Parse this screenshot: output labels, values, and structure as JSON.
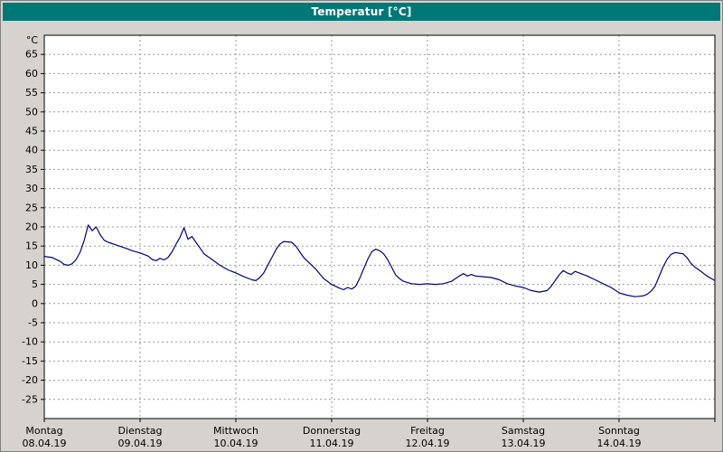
{
  "window": {
    "title": "Temperatur [°C]"
  },
  "colors": {
    "title_bar": "#007878",
    "title_text": "#ffffff",
    "panel_bg": "#d6d3ce",
    "plot_bg": "#ffffff",
    "grid": "#999999",
    "axis": "#000000",
    "line": "#000080"
  },
  "chart_data": {
    "type": "line",
    "title": "Temperatur [°C]",
    "y_unit_label": "°C",
    "ylim": [
      -30,
      70
    ],
    "yticks": [
      -25,
      -20,
      -15,
      -10,
      -5,
      0,
      5,
      10,
      15,
      20,
      25,
      30,
      35,
      40,
      45,
      50,
      55,
      60,
      65
    ],
    "x_unit": "hours_from_start",
    "xlim": [
      0,
      168
    ],
    "grid": true,
    "legend": "none",
    "line_color": "#000080",
    "days": [
      {
        "name": "Montag",
        "date": "08.04.19"
      },
      {
        "name": "Dienstag",
        "date": "09.04.19"
      },
      {
        "name": "Mittwoch",
        "date": "10.04.19"
      },
      {
        "name": "Donnerstag",
        "date": "11.04.19"
      },
      {
        "name": "Freitag",
        "date": "12.04.19"
      },
      {
        "name": "Samstag",
        "date": "13.04.19"
      },
      {
        "name": "Sonntag",
        "date": "14.04.19"
      }
    ],
    "points": [
      [
        0,
        12.3
      ],
      [
        2,
        12.0
      ],
      [
        4,
        11.0
      ],
      [
        5,
        10.2
      ],
      [
        6,
        10.0
      ],
      [
        7,
        10.4
      ],
      [
        8,
        11.5
      ],
      [
        9,
        13.5
      ],
      [
        10,
        16.5
      ],
      [
        11,
        20.5
      ],
      [
        12,
        19.0
      ],
      [
        13,
        20.0
      ],
      [
        14,
        18.0
      ],
      [
        15,
        16.5
      ],
      [
        16,
        16.0
      ],
      [
        18,
        15.3
      ],
      [
        20,
        14.6
      ],
      [
        22,
        13.8
      ],
      [
        24,
        13.2
      ],
      [
        26,
        12.4
      ],
      [
        27,
        11.5
      ],
      [
        28,
        11.2
      ],
      [
        29,
        11.8
      ],
      [
        30,
        11.4
      ],
      [
        31,
        12.0
      ],
      [
        32,
        13.5
      ],
      [
        33,
        15.5
      ],
      [
        34,
        17.3
      ],
      [
        35,
        19.8
      ],
      [
        36,
        16.8
      ],
      [
        37,
        17.5
      ],
      [
        38,
        16.0
      ],
      [
        39,
        14.5
      ],
      [
        40,
        13.0
      ],
      [
        42,
        11.5
      ],
      [
        44,
        10.0
      ],
      [
        46,
        8.8
      ],
      [
        48,
        8.0
      ],
      [
        50,
        7.0
      ],
      [
        52,
        6.2
      ],
      [
        53,
        6.0
      ],
      [
        54,
        6.8
      ],
      [
        55,
        8.0
      ],
      [
        56,
        10.0
      ],
      [
        57,
        12.0
      ],
      [
        58,
        14.0
      ],
      [
        59,
        15.5
      ],
      [
        60,
        16.2
      ],
      [
        62,
        16.0
      ],
      [
        63,
        15.0
      ],
      [
        64,
        13.5
      ],
      [
        65,
        12.0
      ],
      [
        66,
        11.0
      ],
      [
        68,
        9.0
      ],
      [
        70,
        6.5
      ],
      [
        72,
        5.0
      ],
      [
        73,
        4.5
      ],
      [
        74,
        4.0
      ],
      [
        75,
        3.6
      ],
      [
        76,
        4.2
      ],
      [
        77,
        3.8
      ],
      [
        78,
        4.5
      ],
      [
        79,
        6.5
      ],
      [
        80,
        9.0
      ],
      [
        81,
        11.5
      ],
      [
        82,
        13.5
      ],
      [
        83,
        14.2
      ],
      [
        84,
        13.8
      ],
      [
        85,
        13.0
      ],
      [
        86,
        11.5
      ],
      [
        87,
        9.5
      ],
      [
        88,
        7.5
      ],
      [
        89,
        6.5
      ],
      [
        90,
        5.8
      ],
      [
        92,
        5.2
      ],
      [
        94,
        5.0
      ],
      [
        96,
        5.2
      ],
      [
        98,
        5.0
      ],
      [
        100,
        5.2
      ],
      [
        102,
        5.8
      ],
      [
        103,
        6.5
      ],
      [
        104,
        7.2
      ],
      [
        105,
        7.8
      ],
      [
        106,
        7.2
      ],
      [
        107,
        7.6
      ],
      [
        108,
        7.2
      ],
      [
        110,
        7.0
      ],
      [
        112,
        6.8
      ],
      [
        114,
        6.2
      ],
      [
        116,
        5.2
      ],
      [
        118,
        4.6
      ],
      [
        120,
        4.2
      ],
      [
        122,
        3.4
      ],
      [
        124,
        3.0
      ],
      [
        126,
        3.4
      ],
      [
        127,
        4.5
      ],
      [
        128,
        6.0
      ],
      [
        129,
        7.5
      ],
      [
        130,
        8.6
      ],
      [
        131,
        8.0
      ],
      [
        132,
        7.6
      ],
      [
        133,
        8.4
      ],
      [
        134,
        8.0
      ],
      [
        136,
        7.2
      ],
      [
        138,
        6.2
      ],
      [
        140,
        5.2
      ],
      [
        142,
        4.2
      ],
      [
        144,
        2.8
      ],
      [
        146,
        2.2
      ],
      [
        148,
        1.8
      ],
      [
        150,
        2.0
      ],
      [
        151,
        2.4
      ],
      [
        152,
        3.2
      ],
      [
        153,
        4.5
      ],
      [
        154,
        7.0
      ],
      [
        155,
        9.5
      ],
      [
        156,
        11.5
      ],
      [
        157,
        12.8
      ],
      [
        158,
        13.3
      ],
      [
        160,
        13.0
      ],
      [
        161,
        12.0
      ],
      [
        162,
        10.5
      ],
      [
        163,
        9.5
      ],
      [
        164,
        8.8
      ],
      [
        165,
        8.0
      ],
      [
        166,
        7.2
      ],
      [
        168,
        6.0
      ]
    ]
  }
}
